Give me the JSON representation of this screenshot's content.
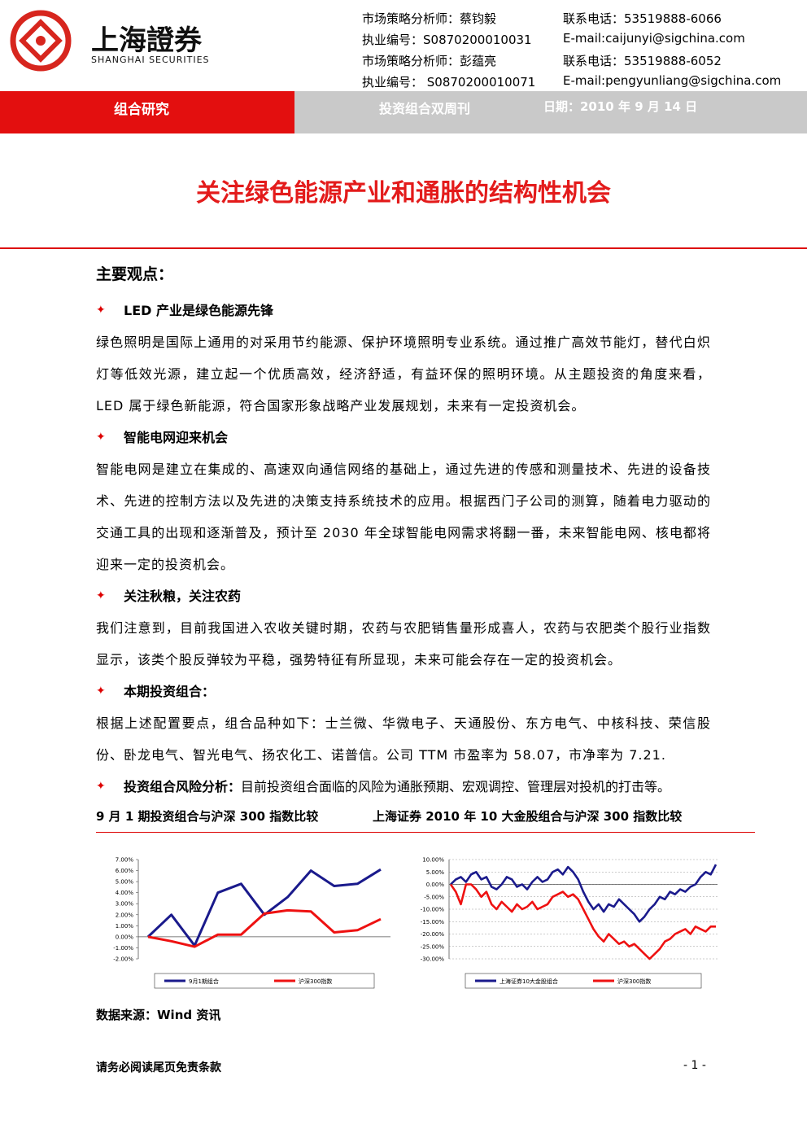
{
  "header": {
    "logo_cn": "上海證券",
    "logo_en": "SHANGHAI SECURITIES",
    "contacts": [
      [
        "市场策略分析师：蔡钧毅",
        "联系电话：53519888-6066"
      ],
      [
        "执业编号：S0870200010031",
        "E-mail:caijunyi@sigchina.com"
      ],
      [
        "市场策略分析师：彭蕴亮",
        "联系电话：53519888-6052"
      ],
      [
        "执业编号： S0870200010071",
        "E-mail:pengyunliang@sigchina.com"
      ]
    ]
  },
  "band": {
    "section": "组合研究",
    "series": "投资组合双周刊",
    "date": "日期：2010 年 9 月 14 日"
  },
  "title": "关注绿色能源产业和通胀的结构性机会",
  "summary_heading": "主要观点：",
  "points": [
    {
      "heading": "LED 产业是绿色能源先锋",
      "text": "绿色照明是国际上通用的对采用节约能源、保护环境照明专业系统。通过推广高效节能灯，替代白炽灯等低效光源，建立起一个优质高效，经济舒适，有益环保的照明环境。从主题投资的角度来看，LED 属于绿色新能源，符合国家形象战略产业发展规划，未来有一定投资机会。"
    },
    {
      "heading": "智能电网迎来机会",
      "text": "智能电网是建立在集成的、高速双向通信网络的基础上，通过先进的传感和测量技术、先进的设备技术、先进的控制方法以及先进的决策支持系统技术的应用。根据西门子公司的测算，随着电力驱动的交通工具的出现和逐渐普及，预计至 2030 年全球智能电网需求将翻一番，未来智能电网、核电都将迎来一定的投资机会。"
    },
    {
      "heading": "关注秋粮，关注农药",
      "text": "我们注意到，目前我国进入农收关键时期，农药与农肥销售量形成喜人，农药与农肥类个股行业指数显示，该类个股反弹较为平稳，强势特征有所显现，未来可能会存在一定的投资机会。"
    },
    {
      "heading": "本期投资组合：",
      "text": "根据上述配置要点，组合品种如下：士兰微、华微电子、天通股份、东方电气、中核科技、荣信股份、卧龙电气、智光电气、扬农化工、诺普信。公司 TTM 市盈率为 58.07，市净率为 7.21."
    },
    {
      "heading": "投资组合风险分析：",
      "inline": "目前投资组合面临的风险为通胀预期、宏观调控、管理层对投机的打击等。"
    }
  ],
  "chart_titles": [
    "9 月 1 期投资组合与沪深 300 指数比较",
    "上海证券 2010 年 10 大金股组合与沪深 300 指数比较"
  ],
  "source": "数据来源：Wind 资讯",
  "footer": {
    "notice": "请务必阅读尾页免责条款",
    "page": "- 1 -"
  },
  "chart_data": [
    {
      "type": "line",
      "ylim": [
        -2,
        7
      ],
      "yticks": [
        {
          "value": -2,
          "label": "-2.00%"
        },
        {
          "value": -1,
          "label": "-1.00%"
        },
        {
          "value": 0,
          "label": "0.00%"
        },
        {
          "value": 1,
          "label": "1.00%"
        },
        {
          "value": 2,
          "label": "2.00%"
        },
        {
          "value": 3,
          "label": "3.00%"
        },
        {
          "value": 4,
          "label": "4.00%"
        },
        {
          "value": 5,
          "label": "5.00%"
        },
        {
          "value": 6,
          "label": "6.00%"
        },
        {
          "value": 7,
          "label": "7.00%"
        }
      ],
      "series": [
        {
          "name": "9月1期组合",
          "color": "#1a1a8c",
          "values": [
            0,
            2.0,
            -0.8,
            4.0,
            4.8,
            2.0,
            3.6,
            6.0,
            4.6,
            4.8,
            6.1
          ]
        },
        {
          "name": "沪深300指数",
          "color": "#ee1111",
          "values": [
            0,
            -0.4,
            -0.9,
            0.2,
            0.2,
            2.1,
            2.4,
            2.3,
            0.4,
            0.6,
            1.6
          ]
        }
      ]
    },
    {
      "type": "line",
      "ylim": [
        -30,
        10
      ],
      "yticks": [
        {
          "value": -30,
          "label": "-30.00%"
        },
        {
          "value": -25,
          "label": "-25.00%"
        },
        {
          "value": -20,
          "label": "-20.00%"
        },
        {
          "value": -15,
          "label": "-15.00%"
        },
        {
          "value": -10,
          "label": "-10.00%"
        },
        {
          "value": -5,
          "label": "-5.00%"
        },
        {
          "value": 0,
          "label": "0.00%"
        },
        {
          "value": 5,
          "label": "5.00%"
        },
        {
          "value": 10,
          "label": "10.00%"
        }
      ],
      "grid": true,
      "series": [
        {
          "name": "上海证券10大金股组合",
          "color": "#1a1a8c",
          "values": [
            0,
            2,
            3,
            1,
            4,
            5,
            2,
            3,
            -1,
            -2,
            0,
            3,
            2,
            -1,
            0,
            -2,
            1,
            3,
            1,
            2,
            5,
            6,
            4,
            7,
            5,
            2,
            -3,
            -7,
            -10,
            -8,
            -11,
            -8,
            -9,
            -6,
            -8,
            -10,
            -12,
            -15,
            -13,
            -10,
            -8,
            -5,
            -6,
            -3,
            -4,
            -2,
            -3,
            -1,
            0,
            3,
            5,
            4,
            8
          ]
        },
        {
          "name": "沪深300指数",
          "color": "#ee1111",
          "values": [
            0,
            -3,
            -8,
            0,
            0,
            -2,
            -5,
            -3,
            -8,
            -10,
            -7,
            -9,
            -11,
            -8,
            -10,
            -9,
            -7,
            -10,
            -9,
            -8,
            -5,
            -4,
            -3,
            -5,
            -4,
            -6,
            -10,
            -14,
            -18,
            -21,
            -23,
            -20,
            -22,
            -24,
            -23,
            -25,
            -24,
            -26,
            -28,
            -30,
            -28,
            -26,
            -23,
            -22,
            -20,
            -19,
            -18,
            -20,
            -17,
            -18,
            -19,
            -17,
            -17
          ]
        }
      ]
    }
  ]
}
